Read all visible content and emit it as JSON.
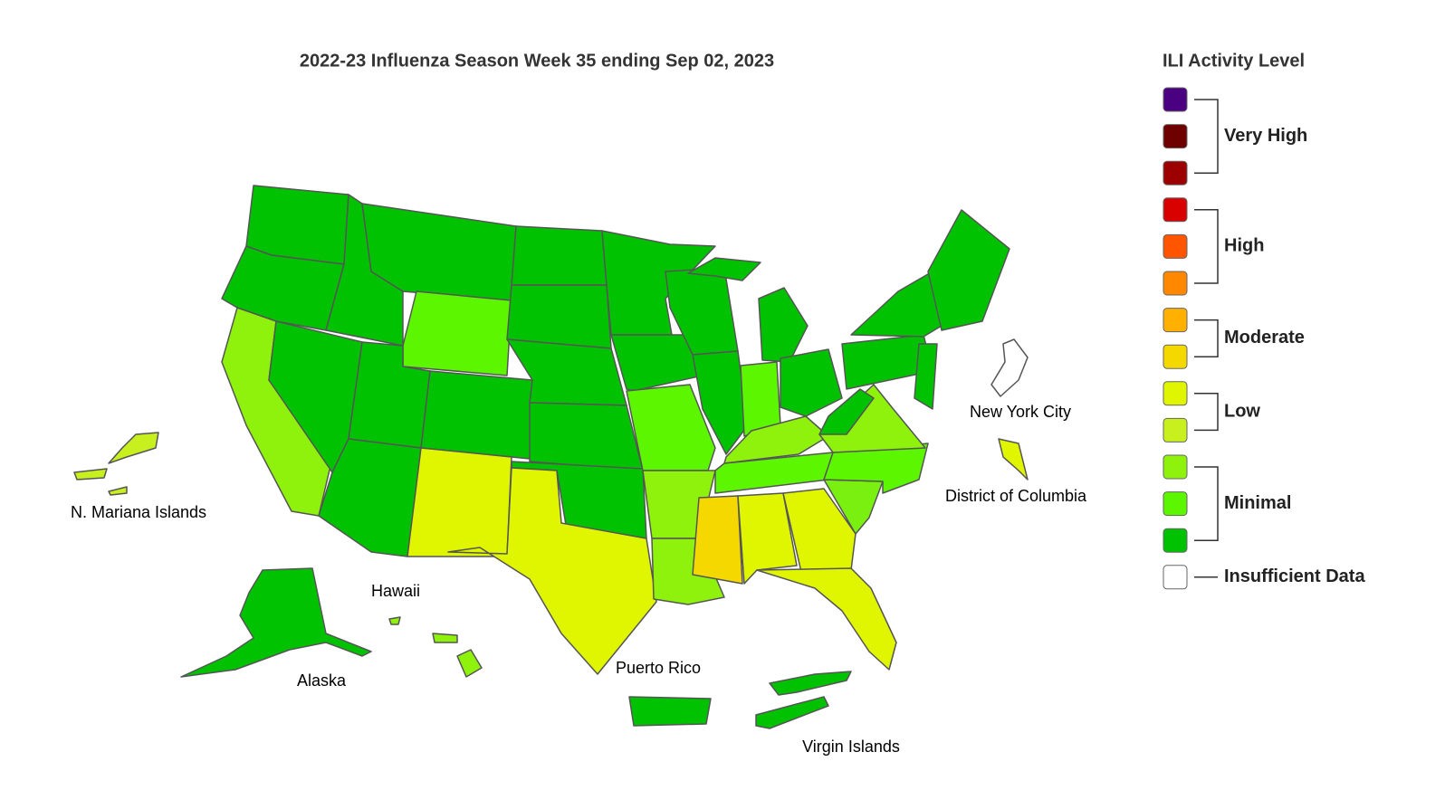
{
  "title": "2022-23 Influenza Season Week 35 ending Sep 02, 2023",
  "legend": {
    "title": "ILI Activity Level",
    "groups": [
      {
        "label": "Very High",
        "colors": [
          "#4b0082",
          "#6e0000",
          "#9c0000"
        ]
      },
      {
        "label": "High",
        "colors": [
          "#d90000",
          "#ff5400",
          "#ff8800"
        ]
      },
      {
        "label": "Moderate",
        "colors": [
          "#ffb000",
          "#f5d800"
        ]
      },
      {
        "label": "Low",
        "colors": [
          "#e0f500",
          "#c8f01e"
        ]
      },
      {
        "label": "Minimal",
        "colors": [
          "#8ef20c",
          "#5cf700",
          "#00c200"
        ]
      },
      {
        "label": "Insufficient Data",
        "colors": [
          "#ffffff"
        ]
      }
    ]
  },
  "labels": {
    "new_york_city": "New York City",
    "district_of_columbia": "District of Columbia",
    "mariana": "N. Mariana Islands",
    "hawaii": "Hawaii",
    "alaska": "Alaska",
    "puerto_rico": "Puerto Rico",
    "virgin_islands": "Virgin Islands"
  }
}
